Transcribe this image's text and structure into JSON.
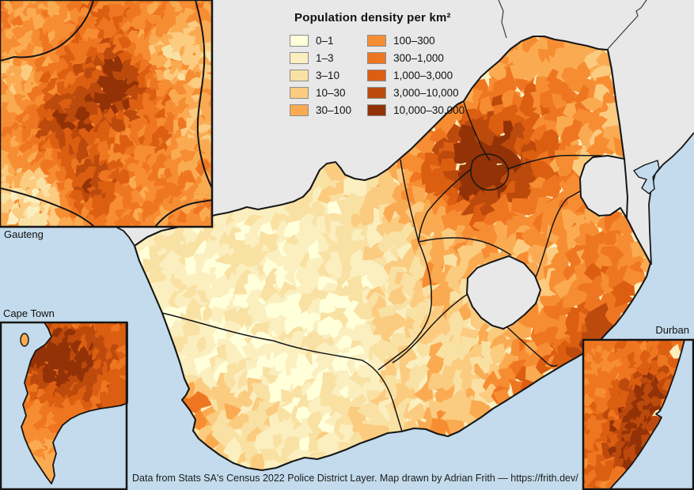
{
  "map": {
    "colors": {
      "ocean": "#C3DBEC",
      "neighbor_land": "#E8E8E8",
      "border": "#161616",
      "thin_border": "#3a3a3a",
      "classes": [
        "#FFFFDA",
        "#FBEFC0",
        "#F9E1A3",
        "#FBCB80",
        "#FAAB52",
        "#F78D32",
        "#EF7621",
        "#DC5E11",
        "#BC4A0C",
        "#933206"
      ]
    }
  },
  "legend": {
    "title": "Population density per km²",
    "items": [
      {
        "label": "0–1",
        "color": "#FFFFDA"
      },
      {
        "label": "1–3",
        "color": "#FBEFC0"
      },
      {
        "label": "3–10",
        "color": "#F9E1A3"
      },
      {
        "label": "10–30",
        "color": "#FBCB80"
      },
      {
        "label": "30–100",
        "color": "#FAAB52"
      },
      {
        "label": "100–300",
        "color": "#F78D32"
      },
      {
        "label": "300–1,000",
        "color": "#EF7621"
      },
      {
        "label": "1,000–3,000",
        "color": "#DC5E11"
      },
      {
        "label": "3,000–10,000",
        "color": "#BC4A0C"
      },
      {
        "label": "10,000–30,000",
        "color": "#933206"
      }
    ]
  },
  "insets": {
    "gauteng": {
      "label": "Gauteng"
    },
    "cape_town": {
      "label": "Cape Town"
    },
    "durban": {
      "label": "Durban"
    }
  },
  "attribution": "Data from Stats SA's Census 2022 Police District Layer.  Map drawn by Adrian Frith — https://frith.dev/"
}
